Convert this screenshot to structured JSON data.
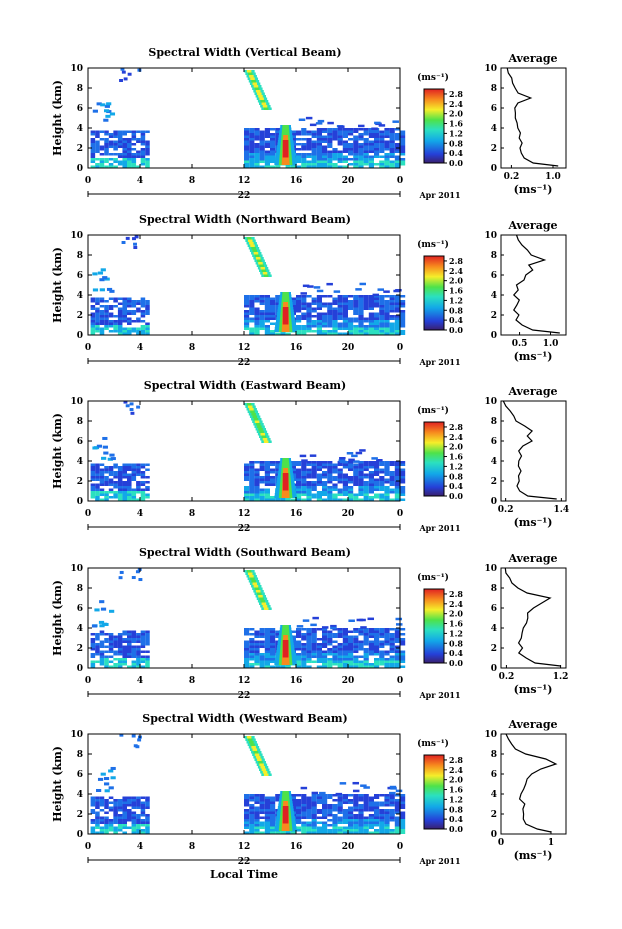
{
  "figure": {
    "xlabel": "Local Time",
    "date_label": "22",
    "month_label": "Apr 2011",
    "ylabel": "Height (km)",
    "cbar_unit": "(ms⁻¹)",
    "avg_title": "Average",
    "avg_xlabel": "(ms⁻¹)"
  },
  "chart_data": [
    {
      "type": "heatmap",
      "title": "Spectral Width (Vertical Beam)",
      "x_ticks": [
        "0",
        "4",
        "8",
        "12",
        "16",
        "20",
        "0"
      ],
      "y_ticks": [
        "0",
        "2",
        "4",
        "6",
        "8",
        "10"
      ],
      "xlim": [
        0,
        24
      ],
      "ylim": [
        0,
        10
      ],
      "colorbar_ticks": [
        "0.0",
        "0.4",
        "0.8",
        "1.2",
        "1.6",
        "2.0",
        "2.4",
        "2.8"
      ],
      "colorbar_range": [
        0,
        3.0
      ],
      "avg_xticks": [
        "0.2",
        "1.0"
      ],
      "avg_xticks_vals": [
        0.2,
        1.0
      ],
      "avg_xlim": [
        0,
        1.25
      ],
      "avg_profile": {
        "height": [
          0.2,
          0.5,
          1,
          1.5,
          2,
          2.5,
          3,
          3.5,
          4,
          4.5,
          5,
          5.5,
          6,
          6.5,
          7,
          7.5,
          8,
          8.5,
          9,
          9.5,
          10
        ],
        "width": [
          1.1,
          0.6,
          0.45,
          0.4,
          0.35,
          0.38,
          0.33,
          0.35,
          0.3,
          0.32,
          0.28,
          0.3,
          0.27,
          0.35,
          0.6,
          0.3,
          0.25,
          0.2,
          0.18,
          0.15,
          0.12
        ]
      }
    },
    {
      "type": "heatmap",
      "title": "Spectral Width (Northward Beam)",
      "x_ticks": [
        "0",
        "4",
        "8",
        "12",
        "16",
        "20",
        "0"
      ],
      "y_ticks": [
        "0",
        "2",
        "4",
        "6",
        "8",
        "10"
      ],
      "xlim": [
        0,
        24
      ],
      "ylim": [
        0,
        10
      ],
      "colorbar_ticks": [
        "0.0",
        "0.4",
        "0.8",
        "1.2",
        "1.6",
        "2.0",
        "2.4",
        "2.8"
      ],
      "colorbar_range": [
        0,
        3.0
      ],
      "avg_xticks": [
        "0.5",
        "1.0"
      ],
      "avg_xticks_vals": [
        0.5,
        1.0
      ],
      "avg_xlim": [
        0.2,
        1.25
      ],
      "avg_profile": {
        "height": [
          0.2,
          0.5,
          1,
          1.5,
          2,
          2.5,
          3,
          3.5,
          4,
          4.5,
          5,
          5.5,
          6,
          6.5,
          7,
          7.5,
          8,
          8.5,
          9,
          9.5,
          10
        ],
        "width": [
          1.15,
          0.7,
          0.55,
          0.45,
          0.48,
          0.4,
          0.45,
          0.5,
          0.42,
          0.48,
          0.45,
          0.55,
          0.6,
          0.7,
          0.65,
          0.9,
          0.7,
          0.6,
          0.55,
          0.5,
          0.45
        ]
      }
    },
    {
      "type": "heatmap",
      "title": "Spectral Width (Eastward Beam)",
      "x_ticks": [
        "0",
        "4",
        "8",
        "12",
        "16",
        "20",
        "0"
      ],
      "y_ticks": [
        "0",
        "2",
        "4",
        "6",
        "8",
        "10"
      ],
      "xlim": [
        0,
        24
      ],
      "ylim": [
        0,
        10
      ],
      "colorbar_ticks": [
        "0.0",
        "0.4",
        "0.8",
        "1.2",
        "1.6",
        "2.0",
        "2.4",
        "2.8"
      ],
      "colorbar_range": [
        0,
        3.0
      ],
      "avg_xticks": [
        "0.2",
        "1.4"
      ],
      "avg_xticks_vals": [
        0.2,
        1.4
      ],
      "avg_xlim": [
        0.1,
        1.5
      ],
      "avg_profile": {
        "height": [
          0.2,
          0.5,
          1,
          1.5,
          2,
          2.5,
          3,
          3.5,
          4,
          4.5,
          5,
          5.5,
          6,
          6.5,
          7,
          7.5,
          8,
          8.5,
          9,
          9.5,
          10
        ],
        "width": [
          1.3,
          0.7,
          0.5,
          0.42,
          0.5,
          0.45,
          0.55,
          0.45,
          0.5,
          0.55,
          0.5,
          0.6,
          0.75,
          0.65,
          0.8,
          0.6,
          0.45,
          0.35,
          0.28,
          0.2,
          0.15
        ]
      }
    },
    {
      "type": "heatmap",
      "title": "Spectral Width (Southward Beam)",
      "x_ticks": [
        "0",
        "4",
        "8",
        "12",
        "16",
        "20",
        "0"
      ],
      "y_ticks": [
        "0",
        "2",
        "4",
        "6",
        "8",
        "10"
      ],
      "xlim": [
        0,
        24
      ],
      "ylim": [
        0,
        10
      ],
      "colorbar_ticks": [
        "0.0",
        "0.4",
        "0.8",
        "1.2",
        "1.6",
        "2.0",
        "2.4",
        "2.8"
      ],
      "colorbar_range": [
        0,
        3.0
      ],
      "avg_xticks": [
        "0.2",
        "1.2"
      ],
      "avg_xticks_vals": [
        0.2,
        1.2
      ],
      "avg_xlim": [
        0.1,
        1.3
      ],
      "avg_profile": {
        "height": [
          0.2,
          0.5,
          1,
          1.5,
          2,
          2.5,
          3,
          3.5,
          4,
          4.5,
          5,
          5.5,
          6,
          6.5,
          7,
          7.5,
          8,
          8.5,
          9,
          9.5,
          10
        ],
        "width": [
          1.2,
          0.75,
          0.55,
          0.45,
          0.5,
          0.42,
          0.45,
          0.5,
          0.52,
          0.55,
          0.6,
          0.62,
          0.7,
          0.85,
          1.0,
          0.6,
          0.4,
          0.3,
          0.25,
          0.2,
          0.18
        ]
      }
    },
    {
      "type": "heatmap",
      "title": "Spectral Width (Westward Beam)",
      "x_ticks": [
        "0",
        "4",
        "8",
        "12",
        "16",
        "20",
        "0"
      ],
      "y_ticks": [
        "0",
        "2",
        "4",
        "6",
        "8",
        "10"
      ],
      "xlim": [
        0,
        24
      ],
      "ylim": [
        0,
        10
      ],
      "colorbar_ticks": [
        "0.0",
        "0.4",
        "0.8",
        "1.2",
        "1.6",
        "2.0",
        "2.4",
        "2.8"
      ],
      "colorbar_range": [
        0,
        3.0
      ],
      "avg_xticks": [
        "0",
        "1"
      ],
      "avg_xticks_vals": [
        0,
        1
      ],
      "avg_xlim": [
        0,
        1.3
      ],
      "avg_profile": {
        "height": [
          0.2,
          0.5,
          1,
          1.5,
          2,
          2.5,
          3,
          3.5,
          4,
          4.5,
          5,
          5.5,
          6,
          6.5,
          7,
          7.5,
          8,
          8.5,
          9,
          9.5,
          10
        ],
        "width": [
          1.0,
          0.7,
          0.5,
          0.45,
          0.48,
          0.42,
          0.45,
          0.4,
          0.42,
          0.45,
          0.5,
          0.55,
          0.6,
          0.8,
          1.1,
          0.9,
          0.5,
          0.3,
          0.2,
          0.15,
          0.1
        ]
      }
    }
  ]
}
